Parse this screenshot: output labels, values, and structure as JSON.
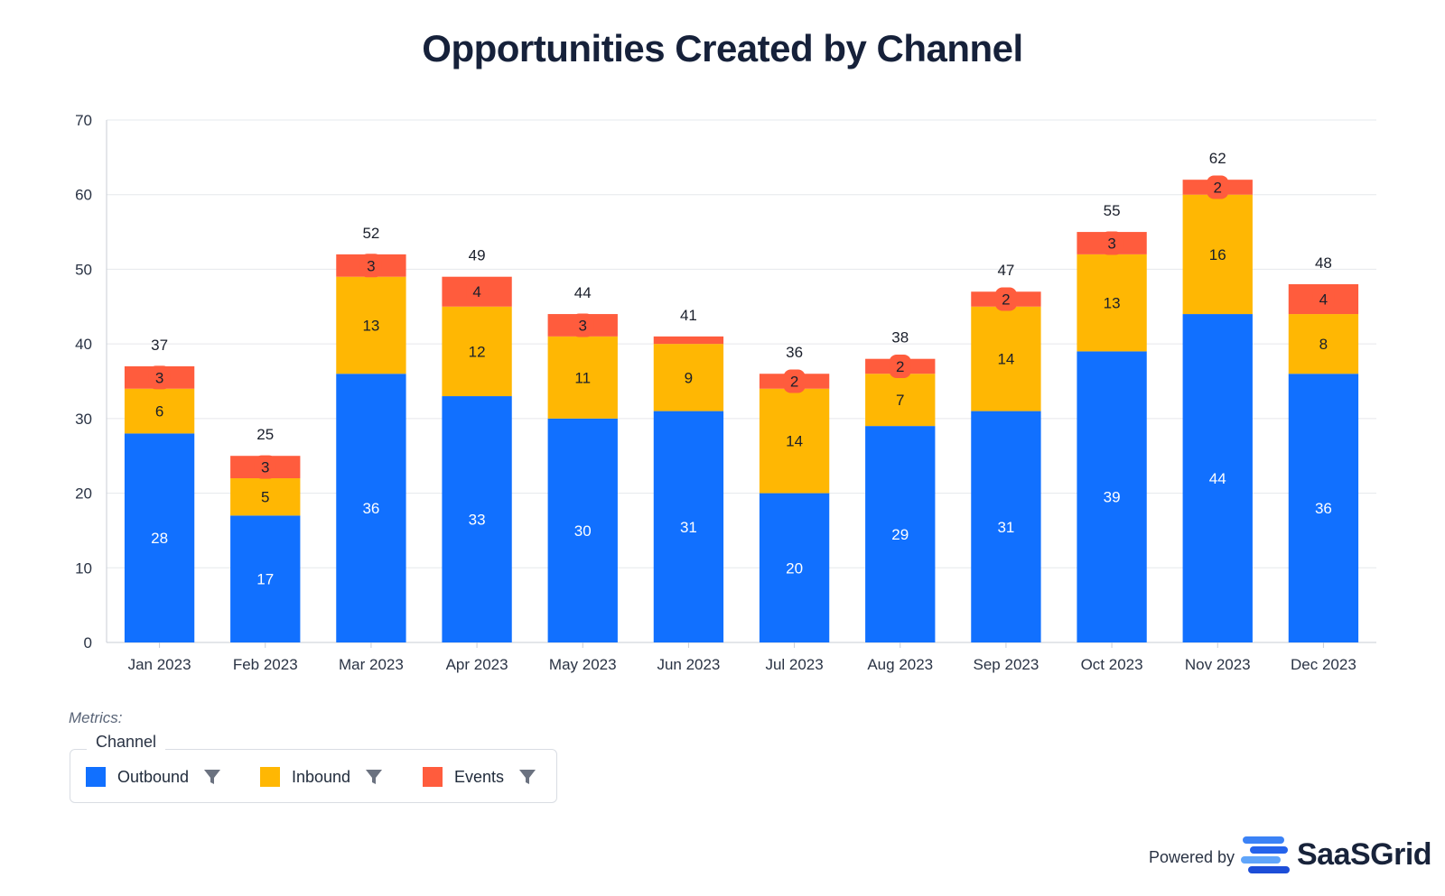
{
  "title": "Opportunities Created by Channel",
  "chart_data": {
    "type": "bar",
    "stacked": true,
    "categories": [
      "Jan 2023",
      "Feb 2023",
      "Mar 2023",
      "Apr 2023",
      "May 2023",
      "Jun 2023",
      "Jul 2023",
      "Aug 2023",
      "Sep 2023",
      "Oct 2023",
      "Nov 2023",
      "Dec 2023"
    ],
    "series": [
      {
        "name": "Outbound",
        "color": "#1170ff",
        "values": [
          28,
          17,
          36,
          33,
          30,
          31,
          20,
          29,
          31,
          39,
          44,
          36
        ]
      },
      {
        "name": "Inbound",
        "color": "#ffb703",
        "values": [
          6,
          5,
          13,
          12,
          11,
          9,
          14,
          7,
          14,
          13,
          16,
          8
        ]
      },
      {
        "name": "Events",
        "color": "#ff5c3d",
        "values": [
          3,
          3,
          3,
          4,
          3,
          1,
          2,
          2,
          2,
          3,
          2,
          4
        ]
      }
    ],
    "segment_labels": {
      "Outbound": [
        "28",
        "17",
        "36",
        "33",
        "30",
        "31",
        "20",
        "29",
        "31",
        "39",
        "44",
        "36"
      ],
      "Inbound": [
        "6",
        "5",
        "13",
        "12",
        "11",
        "9",
        "14",
        "7",
        "14",
        "13",
        "16",
        "8"
      ],
      "Events": [
        "3",
        "3",
        "3",
        "4",
        "3",
        "",
        "2",
        "2",
        "2",
        "3",
        "2",
        "4"
      ]
    },
    "totals": [
      37,
      25,
      52,
      49,
      44,
      41,
      36,
      38,
      47,
      55,
      62,
      48
    ],
    "y_ticks": [
      0,
      10,
      20,
      30,
      40,
      50,
      60,
      70
    ],
    "ylim": [
      0,
      70
    ],
    "grid": true,
    "legend_position": "bottom-left"
  },
  "metrics_label": "Metrics:",
  "legend": {
    "caption": "Channel",
    "items": [
      {
        "label": "Outbound",
        "color": "#1170ff",
        "icon": "funnel-icon"
      },
      {
        "label": "Inbound",
        "color": "#ffb703",
        "icon": "funnel-icon"
      },
      {
        "label": "Events",
        "color": "#ff5c3d",
        "icon": "funnel-icon"
      }
    ]
  },
  "footer": {
    "powered_by": "Powered by",
    "brand": "SaaSGrid"
  }
}
